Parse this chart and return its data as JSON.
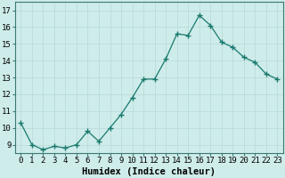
{
  "xlabel": "Humidex (Indice chaleur)",
  "x": [
    0,
    1,
    2,
    3,
    4,
    5,
    6,
    7,
    8,
    9,
    10,
    11,
    12,
    13,
    14,
    15,
    16,
    17,
    18,
    19,
    20,
    21,
    22,
    23
  ],
  "y": [
    10.3,
    9.0,
    8.7,
    8.9,
    8.8,
    9.0,
    9.8,
    9.2,
    10.0,
    10.8,
    11.8,
    12.9,
    12.9,
    14.1,
    15.6,
    15.5,
    16.7,
    16.1,
    15.1,
    14.8,
    14.2,
    13.9,
    13.2,
    12.9
  ],
  "line_color": "#1a7a6e",
  "marker": "+",
  "marker_size": 4.0,
  "bg_color": "#ceecea",
  "grid_color": "#b8d8d5",
  "ylim": [
    8.5,
    17.5
  ],
  "yticks": [
    9,
    10,
    11,
    12,
    13,
    14,
    15,
    16,
    17
  ],
  "xlim": [
    -0.5,
    23.5
  ],
  "xtick_labels": [
    "0",
    "1",
    "2",
    "3",
    "4",
    "5",
    "6",
    "7",
    "8",
    "9",
    "10",
    "11",
    "12",
    "13",
    "14",
    "15",
    "16",
    "17",
    "18",
    "19",
    "20",
    "21",
    "22",
    "23"
  ],
  "xlabel_fontsize": 7.5,
  "tick_fontsize": 6.5,
  "lw": 0.9
}
